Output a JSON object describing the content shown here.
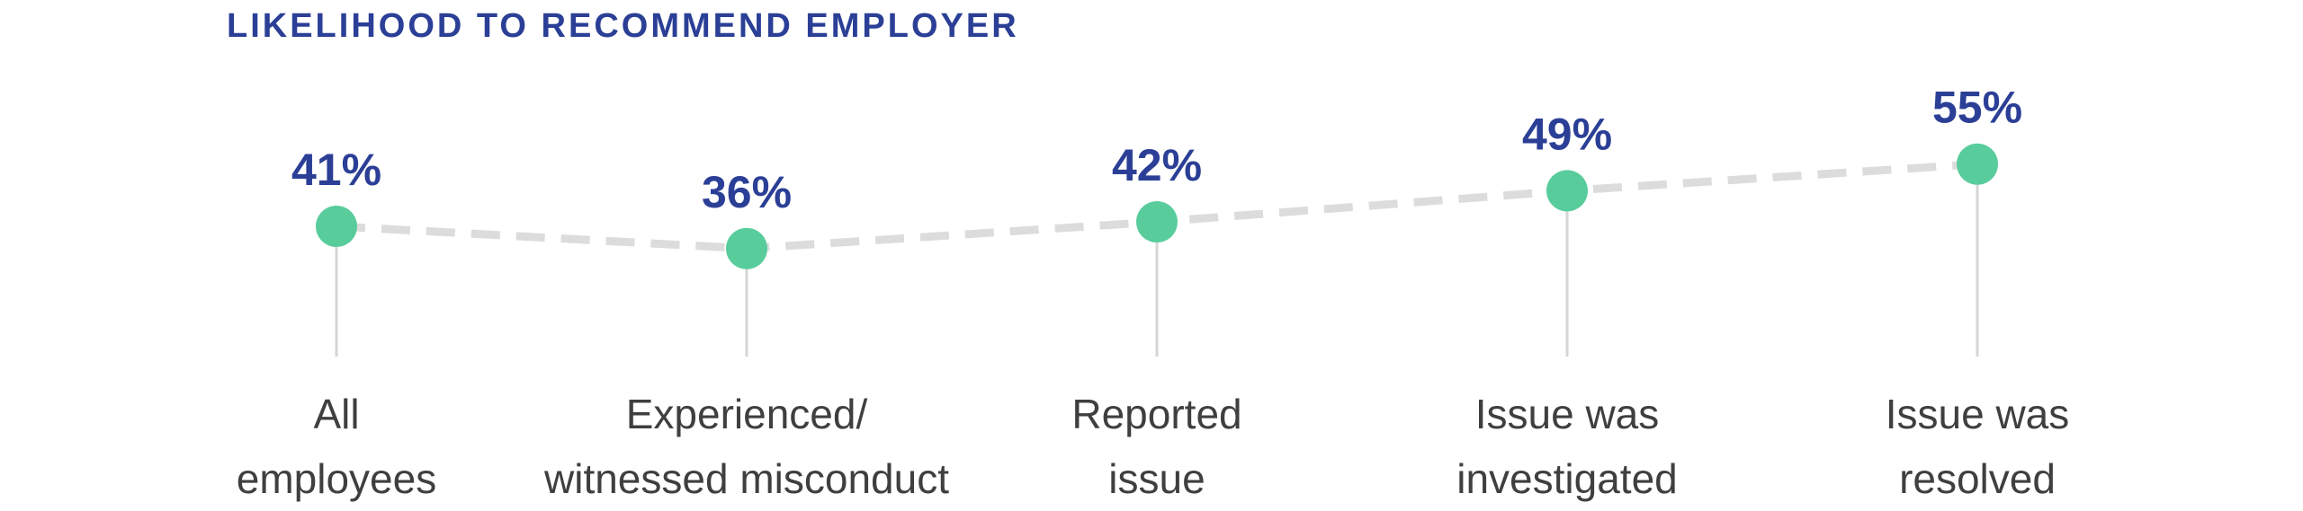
{
  "chart_data": {
    "type": "line",
    "title": "LIKELIHOOD TO RECOMMEND EMPLOYER",
    "categories": [
      [
        "All",
        "employees"
      ],
      [
        "Experienced/",
        "witnessed misconduct"
      ],
      [
        "Reported",
        "issue"
      ],
      [
        "Issue was",
        "investigated"
      ],
      [
        "Issue was",
        "resolved"
      ]
    ],
    "series": [
      {
        "values": [
          41,
          36,
          42,
          49,
          55
        ]
      }
    ],
    "value_labels": [
      "41%",
      "36%",
      "42%",
      "49%",
      "55%"
    ],
    "unit": "%",
    "line_style": "dashed",
    "colors": {
      "title": "#2b3f96",
      "value_label": "#2b3f96",
      "marker": "#58cc9b",
      "line": "#dcdcdc",
      "drop_line": "#d6d6d6",
      "category_label": "#3f3f3f"
    },
    "grid": false,
    "legend": "none"
  }
}
